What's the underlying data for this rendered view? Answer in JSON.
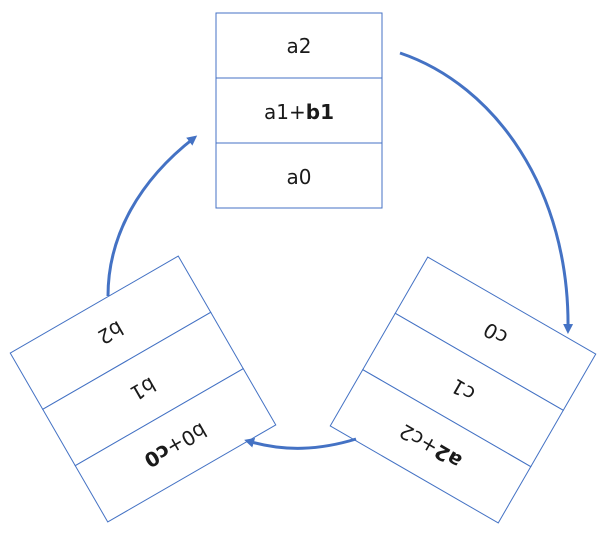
{
  "stacks": {
    "a": {
      "cells": [
        {
          "plain": "a2",
          "bold": ""
        },
        {
          "plain": "a1+",
          "bold": "b1"
        },
        {
          "plain": "a0",
          "bold": ""
        }
      ]
    },
    "c": {
      "cells": [
        {
          "plain": "c0",
          "bold": ""
        },
        {
          "plain": "c1",
          "bold": ""
        },
        {
          "plain": "+c2",
          "bold": "a2"
        }
      ]
    },
    "b": {
      "cells": [
        {
          "plain": "b2",
          "bold": ""
        },
        {
          "plain": "b1",
          "bold": ""
        },
        {
          "plain": "b0+",
          "bold": "c0"
        }
      ]
    }
  },
  "colors": {
    "stroke": "#4472c4",
    "text": "#1a1a1a"
  }
}
